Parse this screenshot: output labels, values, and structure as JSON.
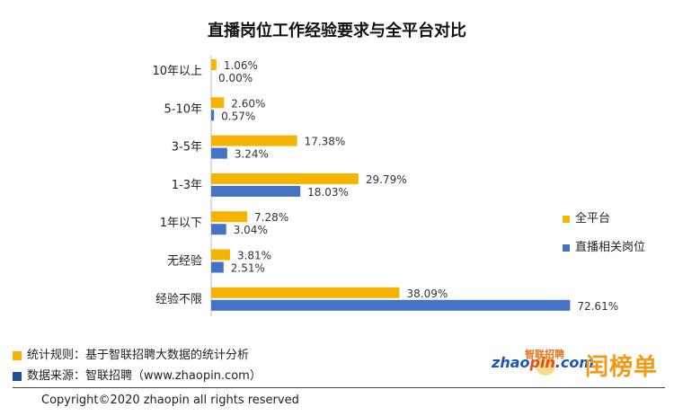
{
  "chart_data": {
    "type": "bar",
    "orientation": "horizontal",
    "title": "直播岗位工作经验要求与全平台对比",
    "categories": [
      "10年以上",
      "5-10年",
      "3-5年",
      "1-3年",
      "1年以下",
      "无经验",
      "经验不限"
    ],
    "series": [
      {
        "name": "全平台",
        "color": "#F5B400",
        "values": [
          1.06,
          2.6,
          17.38,
          29.79,
          7.28,
          3.81,
          38.09
        ],
        "labels": [
          "1.06%",
          "2.60%",
          "17.38%",
          "29.79%",
          "7.28%",
          "3.81%",
          "38.09%"
        ]
      },
      {
        "name": "直播相关岗位",
        "color": "#4472C4",
        "values": [
          0.0,
          0.57,
          3.24,
          18.03,
          3.04,
          2.51,
          72.61
        ],
        "labels": [
          "0.00%",
          "0.57%",
          "3.24%",
          "18.03%",
          "3.04%",
          "2.51%",
          "72.61%"
        ]
      }
    ],
    "xlim": [
      0,
      80
    ],
    "legend_position": "right"
  },
  "legend": [
    {
      "label": "全平台",
      "color": "#F5B400"
    },
    {
      "label": "直播相关岗位",
      "color": "#4472C4"
    }
  ],
  "footer": {
    "note1_label": "统计规则：基于智联招聘大数据的统计分析",
    "note1_color": "#F5B400",
    "note2_label": "数据来源：智联招聘（www.zhaopin.com）",
    "note2_color": "#1F4E99",
    "copyright": "Copyright©2020 zhaopin all rights reserved"
  },
  "logo": {
    "zhao": "zhao",
    "pin": "pin",
    "com": ".com",
    "brand_cn": "智联招聘",
    "rank_text": "闰榜单"
  }
}
